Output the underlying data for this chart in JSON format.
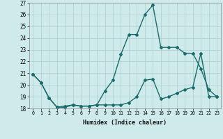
{
  "xlabel": "Humidex (Indice chaleur)",
  "x": [
    0,
    1,
    2,
    3,
    4,
    5,
    6,
    7,
    8,
    9,
    10,
    11,
    12,
    13,
    14,
    15,
    16,
    17,
    18,
    19,
    20,
    21,
    22,
    23
  ],
  "line1": [
    20.9,
    20.2,
    18.9,
    18.1,
    18.1,
    18.3,
    18.2,
    18.2,
    18.3,
    19.5,
    20.4,
    22.6,
    24.3,
    24.3,
    26.0,
    26.8,
    23.2,
    23.2,
    23.2,
    22.7,
    22.7,
    21.4,
    19.6,
    19.0
  ],
  "line2": [
    20.9,
    20.2,
    18.9,
    18.1,
    18.2,
    18.3,
    18.2,
    18.2,
    18.3,
    18.3,
    18.3,
    18.3,
    18.5,
    19.0,
    20.4,
    20.5,
    18.8,
    19.0,
    19.3,
    19.6,
    19.8,
    22.7,
    19.0,
    19.0
  ],
  "ylim": [
    18,
    27
  ],
  "yticks": [
    18,
    19,
    20,
    21,
    22,
    23,
    24,
    25,
    26,
    27
  ],
  "xticks": [
    0,
    1,
    2,
    3,
    4,
    5,
    6,
    7,
    8,
    9,
    10,
    11,
    12,
    13,
    14,
    15,
    16,
    17,
    18,
    19,
    20,
    21,
    22,
    23
  ],
  "line_color": "#1a6b6b",
  "bg_color": "#ceeaea",
  "grid_color": "#aacece",
  "marker": "D",
  "marker_size": 2,
  "linewidth": 1.0
}
